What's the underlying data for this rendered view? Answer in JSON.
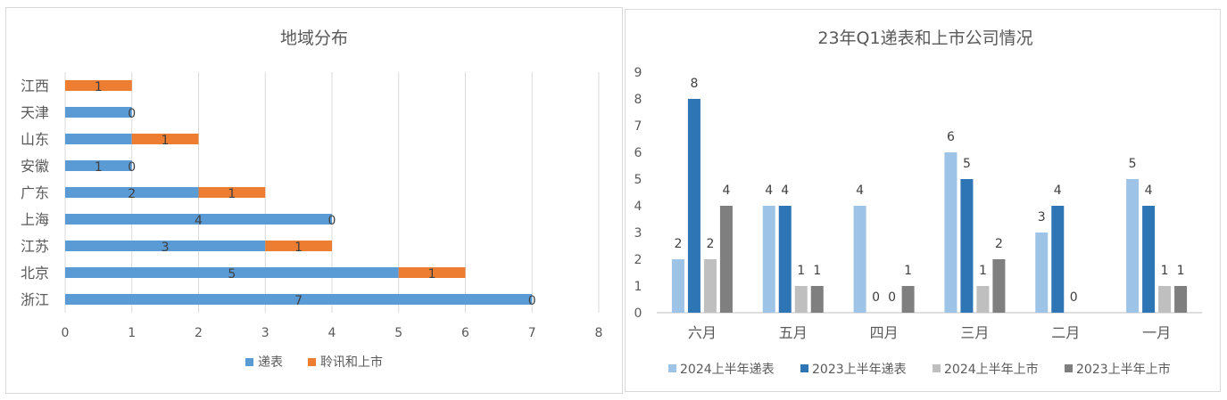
{
  "chart_data": [
    {
      "type": "bar",
      "orientation": "horizontal",
      "stacked": true,
      "title": "地域分布",
      "categories": [
        "江西",
        "天津",
        "山东",
        "安徽",
        "广东",
        "上海",
        "江苏",
        "北京",
        "浙江"
      ],
      "series": [
        {
          "name": "递表",
          "color": "#5b9bd5",
          "values": [
            0,
            1,
            1,
            1,
            2,
            4,
            3,
            5,
            7
          ]
        },
        {
          "name": "聆讯和上市",
          "color": "#ed7d31",
          "values": [
            1,
            0,
            1,
            0,
            1,
            0,
            1,
            1,
            0
          ]
        }
      ],
      "data_labels": [
        [
          "",
          "",
          "",
          "1",
          "2",
          "4",
          "3",
          "5",
          "7"
        ],
        [
          "1",
          "0",
          "1",
          "0",
          "1",
          "0",
          "1",
          "1",
          "0"
        ]
      ],
      "xlim": [
        0,
        8
      ],
      "x_ticks": [
        "0",
        "1",
        "2",
        "3",
        "4",
        "5",
        "6",
        "7",
        "8"
      ],
      "grid": true,
      "legend": "bottom"
    },
    {
      "type": "bar",
      "orientation": "vertical",
      "title": "23年Q1递表和上市公司情况",
      "categories": [
        "六月",
        "五月",
        "四月",
        "三月",
        "二月",
        "一月"
      ],
      "series": [
        {
          "name": "2024上半年递表",
          "color": "#9dc3e6",
          "values": [
            2,
            4,
            4,
            6,
            3,
            5
          ]
        },
        {
          "name": "2023上半年递表",
          "color": "#2e75b6",
          "values": [
            8,
            4,
            0,
            5,
            4,
            4
          ]
        },
        {
          "name": "2024上半年上市",
          "color": "#bfbfbf",
          "values": [
            2,
            1,
            0,
            1,
            0,
            1
          ]
        },
        {
          "name": "2023上半年上市",
          "color": "#7f7f7f",
          "values": [
            4,
            1,
            1,
            2,
            0,
            1
          ]
        }
      ],
      "data_labels": [
        [
          "2",
          "4",
          "4",
          "6",
          "3",
          "5"
        ],
        [
          "8",
          "4",
          "0",
          "5",
          "4",
          "4"
        ],
        [
          "2",
          "1",
          "0",
          "1",
          "0",
          "1"
        ],
        [
          "4",
          "1",
          "1",
          "2",
          "",
          "1"
        ]
      ],
      "ylim": [
        0,
        9
      ],
      "y_ticks": [
        "0",
        "1",
        "2",
        "3",
        "4",
        "5",
        "6",
        "7",
        "8",
        "9"
      ],
      "grid": false,
      "legend": "bottom"
    }
  ]
}
